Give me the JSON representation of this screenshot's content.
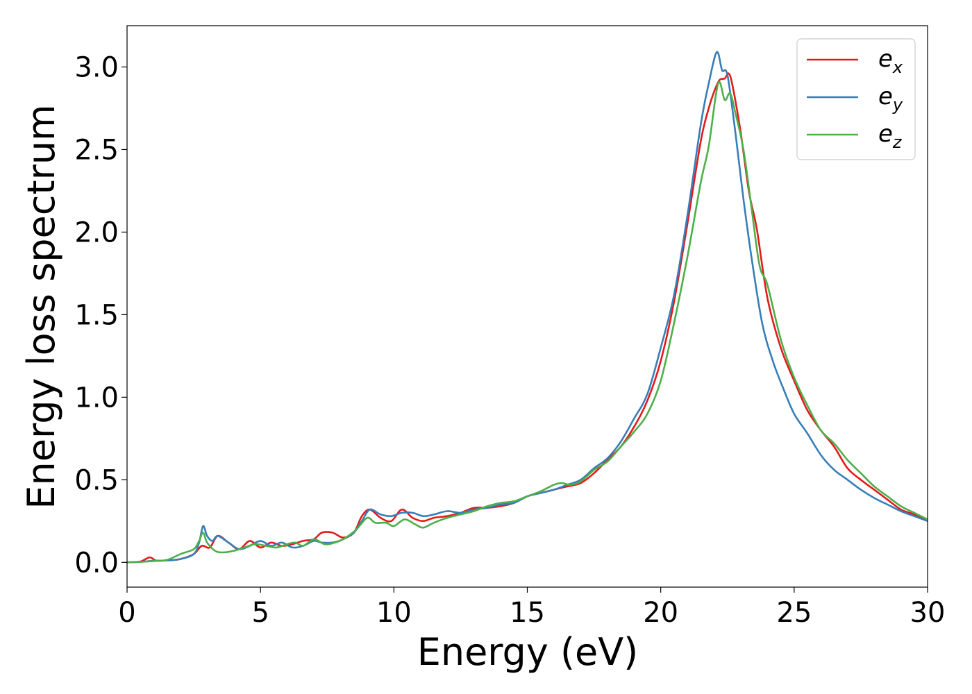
{
  "chart_data": {
    "type": "line",
    "title": "",
    "xlabel": "Energy (eV)",
    "ylabel": "Energy loss spectrum",
    "xlim": [
      0,
      30
    ],
    "ylim": [
      -0.15,
      3.25
    ],
    "x_ticks": [
      0,
      5,
      10,
      15,
      20,
      25,
      30
    ],
    "x_tick_labels": [
      "0",
      "5",
      "10",
      "15",
      "20",
      "25",
      "30"
    ],
    "y_ticks": [
      0.0,
      0.5,
      1.0,
      1.5,
      2.0,
      2.5,
      3.0
    ],
    "y_tick_labels": [
      "0.0",
      "0.5",
      "1.0",
      "1.5",
      "2.0",
      "2.5",
      "3.0"
    ],
    "grid": false,
    "legend_position": "top-right",
    "series": [
      {
        "name": "e_x",
        "label_base": "e",
        "label_sub": "x",
        "color": "#e41a1c",
        "x": [
          0,
          0.5,
          0.85,
          1.1,
          1.5,
          2.0,
          2.5,
          2.8,
          3.1,
          3.4,
          3.8,
          4.2,
          4.6,
          5.0,
          5.4,
          5.8,
          6.2,
          6.6,
          7.0,
          7.3,
          7.7,
          8.1,
          8.5,
          8.8,
          9.1,
          9.5,
          9.9,
          10.3,
          10.7,
          11.1,
          11.5,
          12.0,
          12.5,
          13.0,
          13.5,
          14.0,
          14.5,
          15.0,
          15.5,
          16.0,
          16.5,
          17.0,
          17.5,
          18.0,
          18.5,
          19.0,
          19.5,
          20.0,
          20.5,
          21.0,
          21.5,
          21.8,
          22.0,
          22.2,
          22.4,
          22.55,
          22.7,
          23.0,
          23.3,
          23.6,
          24.0,
          24.5,
          25.0,
          25.5,
          26.0,
          26.5,
          27.0,
          27.5,
          28.0,
          28.5,
          29.0,
          29.5,
          30.0
        ],
        "y": [
          0.0,
          0.005,
          0.03,
          0.01,
          0.012,
          0.02,
          0.05,
          0.1,
          0.09,
          0.16,
          0.12,
          0.08,
          0.13,
          0.09,
          0.12,
          0.1,
          0.11,
          0.13,
          0.14,
          0.18,
          0.18,
          0.15,
          0.18,
          0.28,
          0.32,
          0.27,
          0.25,
          0.32,
          0.27,
          0.25,
          0.27,
          0.28,
          0.3,
          0.33,
          0.33,
          0.34,
          0.36,
          0.4,
          0.42,
          0.44,
          0.46,
          0.48,
          0.54,
          0.62,
          0.7,
          0.82,
          0.98,
          1.22,
          1.58,
          2.05,
          2.55,
          2.75,
          2.85,
          2.92,
          2.93,
          2.96,
          2.88,
          2.6,
          2.25,
          2.02,
          1.6,
          1.3,
          1.1,
          0.92,
          0.8,
          0.7,
          0.57,
          0.5,
          0.44,
          0.38,
          0.32,
          0.29,
          0.25
        ]
      },
      {
        "name": "e_y",
        "label_base": "e",
        "label_sub": "y",
        "color": "#377eb8",
        "x": [
          0,
          0.5,
          1.0,
          1.5,
          2.0,
          2.5,
          2.7,
          2.85,
          3.0,
          3.2,
          3.4,
          3.8,
          4.2,
          4.6,
          5.0,
          5.4,
          5.8,
          6.2,
          6.6,
          7.0,
          7.3,
          7.7,
          8.1,
          8.5,
          8.8,
          9.1,
          9.5,
          9.9,
          10.3,
          10.7,
          11.1,
          11.5,
          12.0,
          12.5,
          13.0,
          13.5,
          14.0,
          14.5,
          15.0,
          15.5,
          16.0,
          16.5,
          17.0,
          17.5,
          18.0,
          18.5,
          19.0,
          19.5,
          20.0,
          20.5,
          21.0,
          21.5,
          21.8,
          22.1,
          22.3,
          22.5,
          22.8,
          23.1,
          23.4,
          23.8,
          24.2,
          24.6,
          25.0,
          25.5,
          26.0,
          26.5,
          27.0,
          27.5,
          28.0,
          28.5,
          29.0,
          29.5,
          30.0
        ],
        "y": [
          0.0,
          0.003,
          0.01,
          0.012,
          0.02,
          0.05,
          0.12,
          0.22,
          0.16,
          0.13,
          0.16,
          0.12,
          0.08,
          0.1,
          0.13,
          0.1,
          0.12,
          0.09,
          0.1,
          0.13,
          0.12,
          0.12,
          0.14,
          0.18,
          0.25,
          0.32,
          0.29,
          0.28,
          0.3,
          0.3,
          0.28,
          0.29,
          0.31,
          0.3,
          0.32,
          0.33,
          0.35,
          0.36,
          0.4,
          0.42,
          0.44,
          0.47,
          0.5,
          0.57,
          0.63,
          0.73,
          0.87,
          1.02,
          1.3,
          1.62,
          2.1,
          2.65,
          2.9,
          3.09,
          2.98,
          2.95,
          2.6,
          2.2,
          1.85,
          1.45,
          1.22,
          1.05,
          0.9,
          0.78,
          0.65,
          0.56,
          0.5,
          0.44,
          0.39,
          0.35,
          0.31,
          0.28,
          0.25
        ]
      },
      {
        "name": "e_z",
        "label_base": "e",
        "label_sub": "z",
        "color": "#4daf4a",
        "x": [
          0,
          0.5,
          1.0,
          1.5,
          2.0,
          2.5,
          2.7,
          2.85,
          3.0,
          3.3,
          3.6,
          4.0,
          4.4,
          4.8,
          5.2,
          5.6,
          6.0,
          6.3,
          6.6,
          7.0,
          7.4,
          7.8,
          8.2,
          8.6,
          9.0,
          9.3,
          9.7,
          10.0,
          10.4,
          10.8,
          11.1,
          11.5,
          12.0,
          12.5,
          13.0,
          13.5,
          14.0,
          14.5,
          15.0,
          15.5,
          16.0,
          16.3,
          16.6,
          17.0,
          17.5,
          18.0,
          18.5,
          19.0,
          19.5,
          20.0,
          20.5,
          21.0,
          21.5,
          21.8,
          22.15,
          22.4,
          22.6,
          22.8,
          23.1,
          23.4,
          23.7,
          24.0,
          24.5,
          25.0,
          25.5,
          26.0,
          26.5,
          27.0,
          27.5,
          28.0,
          28.5,
          29.0,
          29.5,
          30.0
        ],
        "y": [
          0.0,
          0.003,
          0.008,
          0.015,
          0.05,
          0.08,
          0.13,
          0.18,
          0.12,
          0.07,
          0.06,
          0.07,
          0.09,
          0.11,
          0.1,
          0.09,
          0.11,
          0.12,
          0.1,
          0.14,
          0.11,
          0.12,
          0.15,
          0.2,
          0.27,
          0.24,
          0.24,
          0.22,
          0.26,
          0.23,
          0.21,
          0.24,
          0.27,
          0.29,
          0.31,
          0.34,
          0.36,
          0.37,
          0.4,
          0.43,
          0.47,
          0.48,
          0.47,
          0.49,
          0.56,
          0.61,
          0.7,
          0.79,
          0.9,
          1.1,
          1.45,
          1.85,
          2.3,
          2.52,
          2.9,
          2.8,
          2.84,
          2.72,
          2.5,
          2.15,
          1.8,
          1.68,
          1.35,
          1.12,
          0.95,
          0.8,
          0.72,
          0.62,
          0.54,
          0.46,
          0.4,
          0.34,
          0.3,
          0.26
        ]
      }
    ]
  }
}
